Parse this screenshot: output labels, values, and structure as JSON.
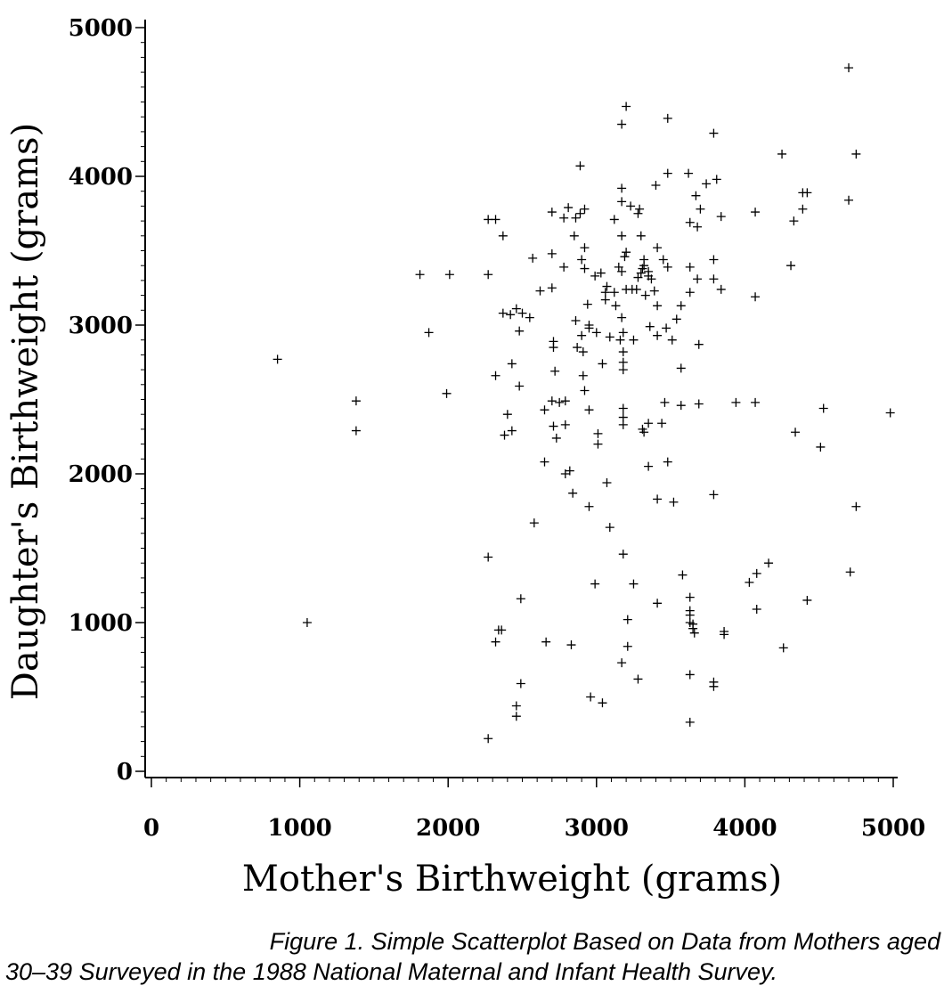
{
  "chart_data": {
    "type": "scatter",
    "xlabel": "Mother's Birthweight (grams)",
    "ylabel": "Daughter's Birthweight (grams)",
    "xlim": [
      0,
      5000
    ],
    "ylim": [
      0,
      5000
    ],
    "xticks": [
      "0",
      "1000",
      "2000",
      "3000",
      "4000",
      "5000"
    ],
    "yticks": [
      "0",
      "1000",
      "2000",
      "3000",
      "4000",
      "5000"
    ],
    "grid": false,
    "marker": "+",
    "points": [
      [
        850,
        2770
      ],
      [
        1050,
        1000
      ],
      [
        1380,
        2490
      ],
      [
        1380,
        2290
      ],
      [
        1810,
        3340
      ],
      [
        1870,
        2950
      ],
      [
        1990,
        2540
      ],
      [
        2010,
        3340
      ],
      [
        2270,
        3710
      ],
      [
        2320,
        3710
      ],
      [
        2270,
        3340
      ],
      [
        2370,
        3600
      ],
      [
        2370,
        3080
      ],
      [
        2420,
        3070
      ],
      [
        2460,
        3110
      ],
      [
        2500,
        3080
      ],
      [
        2550,
        3050
      ],
      [
        2480,
        2960
      ],
      [
        2320,
        2660
      ],
      [
        2430,
        2740
      ],
      [
        2480,
        2590
      ],
      [
        2400,
        2400
      ],
      [
        2430,
        2290
      ],
      [
        2380,
        2260
      ],
      [
        2570,
        3450
      ],
      [
        2620,
        3230
      ],
      [
        2270,
        1440
      ],
      [
        2320,
        870
      ],
      [
        2340,
        950
      ],
      [
        2360,
        950
      ],
      [
        2490,
        1160
      ],
      [
        2490,
        590
      ],
      [
        2460,
        440
      ],
      [
        2460,
        370
      ],
      [
        2270,
        220
      ],
      [
        2580,
        1670
      ],
      [
        2660,
        870
      ],
      [
        2650,
        2080
      ],
      [
        2650,
        2430
      ],
      [
        2700,
        3760
      ],
      [
        2700,
        3480
      ],
      [
        2700,
        3250
      ],
      [
        2710,
        2890
      ],
      [
        2710,
        2850
      ],
      [
        2720,
        2690
      ],
      [
        2700,
        2490
      ],
      [
        2710,
        2320
      ],
      [
        2730,
        2240
      ],
      [
        2750,
        2480
      ],
      [
        2780,
        3720
      ],
      [
        2780,
        3390
      ],
      [
        2790,
        2490
      ],
      [
        2790,
        2330
      ],
      [
        2790,
        2000
      ],
      [
        2810,
        3790
      ],
      [
        2820,
        2020
      ],
      [
        2840,
        1870
      ],
      [
        2830,
        850
      ],
      [
        2850,
        3600
      ],
      [
        2860,
        3720
      ],
      [
        2860,
        3030
      ],
      [
        2870,
        2850
      ],
      [
        2890,
        4070
      ],
      [
        2890,
        3750
      ],
      [
        2900,
        3440
      ],
      [
        2900,
        2930
      ],
      [
        2910,
        2820
      ],
      [
        2910,
        2660
      ],
      [
        2920,
        3780
      ],
      [
        2920,
        3520
      ],
      [
        2920,
        3380
      ],
      [
        2920,
        2560
      ],
      [
        2940,
        3140
      ],
      [
        2950,
        3000
      ],
      [
        2950,
        2980
      ],
      [
        2950,
        2430
      ],
      [
        2950,
        1780
      ],
      [
        2960,
        500
      ],
      [
        2990,
        3330
      ],
      [
        2990,
        1260
      ],
      [
        3000,
        2950
      ],
      [
        3010,
        2270
      ],
      [
        3010,
        2200
      ],
      [
        3030,
        3350
      ],
      [
        3040,
        2740
      ],
      [
        3040,
        460
      ],
      [
        3060,
        3220
      ],
      [
        3060,
        3170
      ],
      [
        3070,
        3260
      ],
      [
        3070,
        1940
      ],
      [
        3090,
        2920
      ],
      [
        3090,
        1640
      ],
      [
        3120,
        3710
      ],
      [
        3120,
        3220
      ],
      [
        3130,
        3130
      ],
      [
        3150,
        3390
      ],
      [
        3160,
        2900
      ],
      [
        3170,
        4350
      ],
      [
        3170,
        3920
      ],
      [
        3170,
        3830
      ],
      [
        3170,
        3600
      ],
      [
        3170,
        3360
      ],
      [
        3170,
        3050
      ],
      [
        3180,
        2950
      ],
      [
        3180,
        2820
      ],
      [
        3180,
        2750
      ],
      [
        3180,
        2700
      ],
      [
        3180,
        2440
      ],
      [
        3180,
        2380
      ],
      [
        3180,
        2330
      ],
      [
        3180,
        1460
      ],
      [
        3170,
        730
      ],
      [
        3190,
        3460
      ],
      [
        3200,
        4470
      ],
      [
        3200,
        3490
      ],
      [
        3200,
        3240
      ],
      [
        3210,
        1020
      ],
      [
        3210,
        840
      ],
      [
        3230,
        3800
      ],
      [
        3240,
        3240
      ],
      [
        3250,
        2900
      ],
      [
        3250,
        1260
      ],
      [
        3270,
        3240
      ],
      [
        3280,
        3750
      ],
      [
        3280,
        3320
      ],
      [
        3280,
        620
      ],
      [
        3290,
        3780
      ],
      [
        3300,
        3600
      ],
      [
        3300,
        3350
      ],
      [
        3310,
        3380
      ],
      [
        3310,
        2300
      ],
      [
        3320,
        3440
      ],
      [
        3320,
        3400
      ],
      [
        3320,
        2280
      ],
      [
        3330,
        3200
      ],
      [
        3350,
        3360
      ],
      [
        3350,
        3330
      ],
      [
        3350,
        2340
      ],
      [
        3350,
        2050
      ],
      [
        3360,
        2990
      ],
      [
        3370,
        3310
      ],
      [
        3390,
        3230
      ],
      [
        3400,
        3940
      ],
      [
        3410,
        3520
      ],
      [
        3410,
        3130
      ],
      [
        3410,
        2930
      ],
      [
        3410,
        1130
      ],
      [
        3410,
        1830
      ],
      [
        3440,
        2340
      ],
      [
        3450,
        3440
      ],
      [
        3460,
        2480
      ],
      [
        3470,
        2980
      ],
      [
        3480,
        4390
      ],
      [
        3480,
        4020
      ],
      [
        3480,
        3390
      ],
      [
        3480,
        2080
      ],
      [
        3510,
        2900
      ],
      [
        3520,
        1810
      ],
      [
        3540,
        3040
      ],
      [
        3570,
        3130
      ],
      [
        3570,
        2710
      ],
      [
        3570,
        2460
      ],
      [
        3580,
        1320
      ],
      [
        3620,
        4020
      ],
      [
        3630,
        3690
      ],
      [
        3630,
        3390
      ],
      [
        3630,
        3220
      ],
      [
        3630,
        1170
      ],
      [
        3630,
        1080
      ],
      [
        3630,
        1050
      ],
      [
        3630,
        1000
      ],
      [
        3630,
        650
      ],
      [
        3630,
        330
      ],
      [
        3650,
        990
      ],
      [
        3650,
        960
      ],
      [
        3660,
        930
      ],
      [
        3670,
        3870
      ],
      [
        3680,
        3660
      ],
      [
        3680,
        3310
      ],
      [
        3690,
        2870
      ],
      [
        3690,
        2470
      ],
      [
        3700,
        3780
      ],
      [
        3740,
        3950
      ],
      [
        3790,
        4290
      ],
      [
        3790,
        3440
      ],
      [
        3790,
        3310
      ],
      [
        3790,
        1860
      ],
      [
        3790,
        600
      ],
      [
        3790,
        570
      ],
      [
        3810,
        3980
      ],
      [
        3840,
        3730
      ],
      [
        3840,
        3240
      ],
      [
        3860,
        940
      ],
      [
        3860,
        920
      ],
      [
        3940,
        2480
      ],
      [
        4030,
        1270
      ],
      [
        4070,
        3760
      ],
      [
        4070,
        3190
      ],
      [
        4070,
        2480
      ],
      [
        4080,
        1330
      ],
      [
        4080,
        1090
      ],
      [
        4160,
        1400
      ],
      [
        4250,
        4150
      ],
      [
        4260,
        830
      ],
      [
        4310,
        3400
      ],
      [
        4330,
        3700
      ],
      [
        4340,
        2280
      ],
      [
        4390,
        3890
      ],
      [
        4390,
        3780
      ],
      [
        4420,
        3890
      ],
      [
        4420,
        1150
      ],
      [
        4510,
        2180
      ],
      [
        4530,
        2440
      ],
      [
        4700,
        4730
      ],
      [
        4700,
        3840
      ],
      [
        4710,
        1340
      ],
      [
        4750,
        4150
      ],
      [
        4750,
        1780
      ],
      [
        4980,
        2410
      ]
    ]
  },
  "caption": {
    "line1": "Figure 1.  Simple Scatterplot Based on Data from Mothers aged",
    "line2": "30–39 Surveyed in the 1988 National Maternal and Infant Health Survey."
  }
}
